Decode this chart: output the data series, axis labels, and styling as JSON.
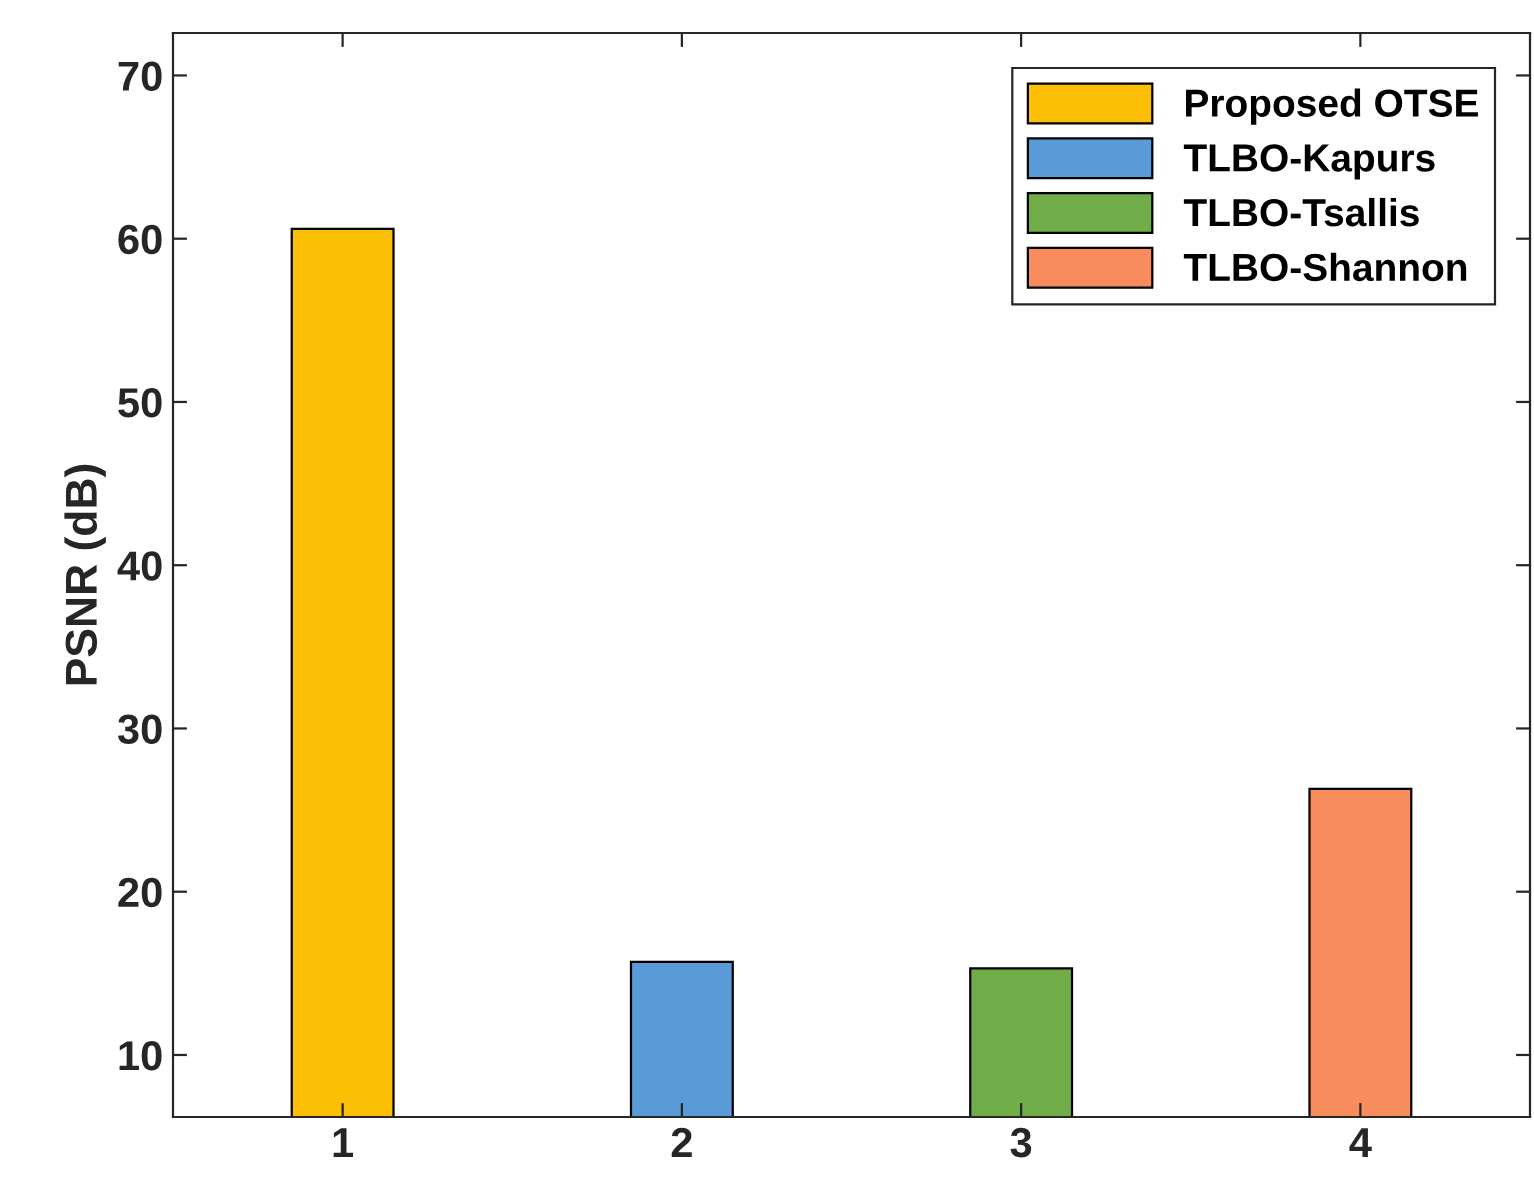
{
  "chart_data": {
    "type": "bar",
    "ylabel": "PSNR (dB)",
    "xlim": [
      0.5,
      4.5
    ],
    "xticks": [
      1,
      2,
      3,
      4
    ],
    "ylim": [
      6.2,
      72.6
    ],
    "yticks": [
      10,
      20,
      30,
      40,
      50,
      60,
      70
    ],
    "series": [
      {
        "name": "Proposed OTSE",
        "color": "#fbbf05",
        "x": [
          1
        ],
        "values": [
          60.6
        ]
      },
      {
        "name": "TLBO-Kapurs",
        "color": "#589bd6",
        "x": [
          2
        ],
        "values": [
          15.7
        ]
      },
      {
        "name": "TLBO-Tsallis",
        "color": "#70ac48",
        "x": [
          3
        ],
        "values": [
          15.3
        ]
      },
      {
        "name": "TLBO-Shannon",
        "color": "#f88c5c",
        "x": [
          4
        ],
        "values": [
          26.3
        ]
      }
    ],
    "legend": "top right",
    "grid": false
  }
}
